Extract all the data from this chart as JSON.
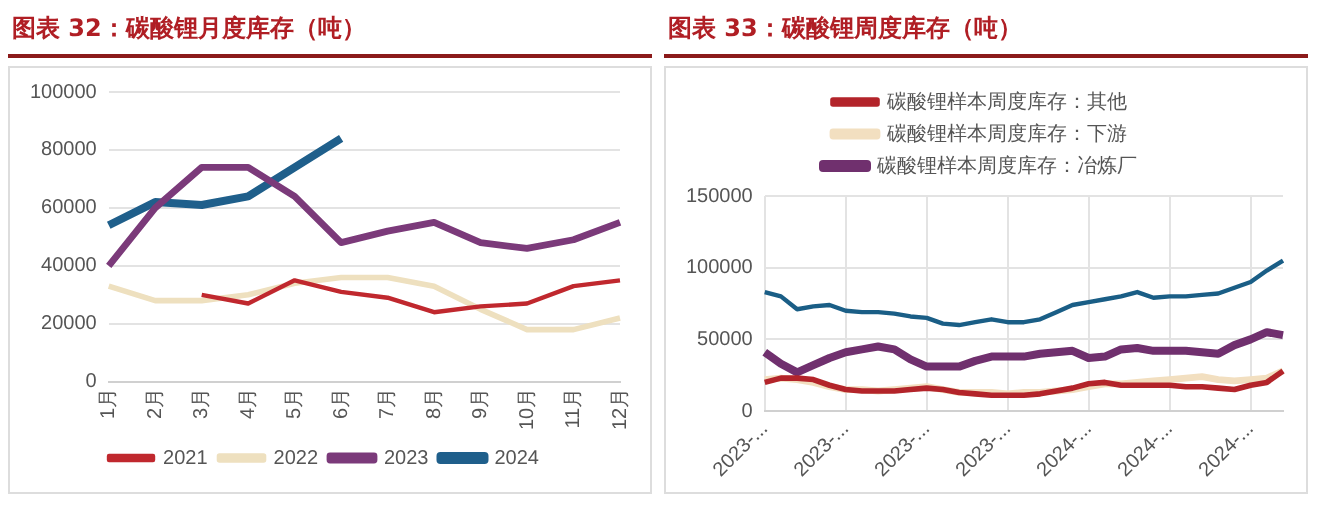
{
  "chart_data": [
    {
      "type": "line",
      "title": "图表 32：碳酸锂月度库存（吨）",
      "categories": [
        "1月",
        "2月",
        "3月",
        "4月",
        "5月",
        "6月",
        "7月",
        "8月",
        "9月",
        "10月",
        "11月",
        "12月"
      ],
      "series": [
        {
          "name": "2021",
          "color": "#c0282e",
          "values": [
            null,
            null,
            30000,
            27000,
            35000,
            31000,
            29000,
            24000,
            26000,
            27000,
            33000,
            35000
          ]
        },
        {
          "name": "2022",
          "color": "#eee0bf",
          "values": [
            33000,
            28000,
            28000,
            30000,
            34000,
            36000,
            36000,
            33000,
            25000,
            18000,
            18000,
            22000
          ]
        },
        {
          "name": "2023",
          "color": "#7b3a7a",
          "values": [
            40000,
            60000,
            74000,
            74000,
            64000,
            48000,
            52000,
            55000,
            48000,
            46000,
            49000,
            55000
          ]
        },
        {
          "name": "2024",
          "color": "#1f5f8b",
          "values": [
            54000,
            62000,
            61000,
            64000,
            74000,
            84000,
            null,
            null,
            null,
            null,
            null,
            null
          ]
        }
      ],
      "ylim": [
        0,
        100000
      ],
      "yticks": [
        0,
        20000,
        40000,
        60000,
        80000,
        100000
      ],
      "grid": "y",
      "legend": "bottom",
      "marker": "none"
    },
    {
      "type": "line",
      "title": "图表 33：碳酸锂周度库存（吨）",
      "categories": [
        "2023-...",
        null,
        null,
        null,
        null,
        "2023-...",
        null,
        null,
        null,
        null,
        "2023-...",
        null,
        null,
        null,
        null,
        "2023-...",
        null,
        null,
        null,
        null,
        "2024-...",
        null,
        null,
        null,
        null,
        "2024-...",
        null,
        null,
        null,
        null,
        "2024-...",
        null,
        null
      ],
      "series": [
        {
          "color": "#1a5e86",
          "values": [
            83000,
            80000,
            71000,
            73000,
            74000,
            70000,
            69000,
            69000,
            68000,
            66000,
            65000,
            61000,
            60000,
            62000,
            64000,
            62000,
            62000,
            64000,
            69000,
            74000,
            76000,
            78000,
            80000,
            83000,
            79000,
            80000,
            80000,
            81000,
            82000,
            86000,
            90000,
            98000,
            105000
          ]
        },
        {
          "name": "碳酸锂样本周度库存：其他",
          "color": "#b3242a",
          "values": [
            20000,
            23000,
            23000,
            22000,
            18000,
            15000,
            14000,
            14000,
            14000,
            15000,
            16000,
            15000,
            13000,
            12000,
            11000,
            11000,
            11000,
            12000,
            14000,
            16000,
            19000,
            20000,
            18000,
            18000,
            18000,
            18000,
            17000,
            17000,
            16000,
            15000,
            18000,
            20000,
            28000
          ]
        },
        {
          "name": "碳酸锂样本周度库存：下游",
          "color": "#f2dfc0",
          "values": [
            22000,
            23000,
            22000,
            20000,
            17000,
            15000,
            15000,
            14000,
            15000,
            16000,
            17000,
            15000,
            13000,
            13000,
            13000,
            12000,
            13000,
            13000,
            14000,
            15000,
            17000,
            19000,
            19000,
            20000,
            21000,
            22000,
            23000,
            24000,
            22000,
            21000,
            22000,
            23000,
            28000
          ]
        },
        {
          "name": "碳酸锂样本周度库存：冶炼厂",
          "color": "#70306e",
          "values": [
            41000,
            33000,
            27000,
            32000,
            37000,
            41000,
            43000,
            45000,
            43000,
            36000,
            31000,
            31000,
            31000,
            35000,
            38000,
            38000,
            38000,
            40000,
            41000,
            42000,
            37000,
            38000,
            43000,
            44000,
            42000,
            42000,
            42000,
            41000,
            40000,
            46000,
            50000,
            55000,
            53000
          ]
        }
      ],
      "ylim": [
        0,
        150000
      ],
      "yticks": [
        0,
        50000,
        100000,
        150000
      ],
      "grid": true,
      "legend": "top",
      "marker": "none"
    }
  ]
}
